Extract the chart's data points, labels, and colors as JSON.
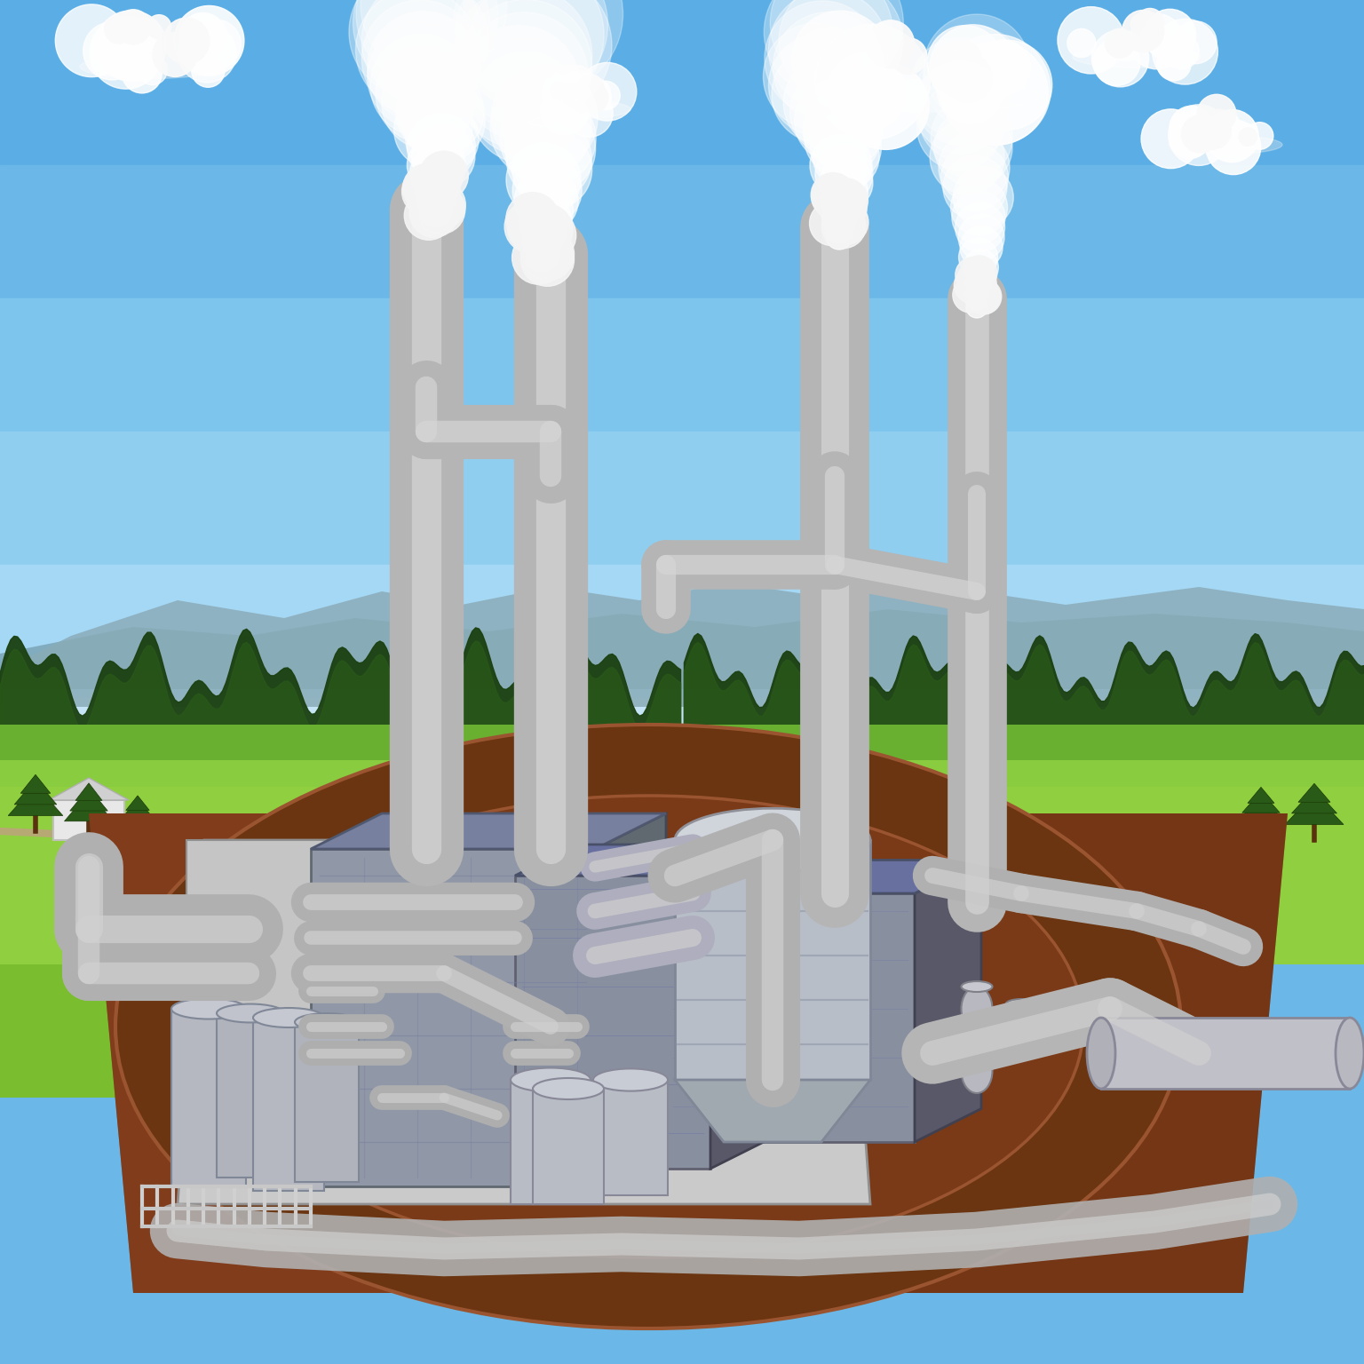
{
  "figsize": [
    15.36,
    15.36
  ],
  "dpi": 100,
  "sky_top": "#6BB8E8",
  "sky_horizon": "#A8D5F0",
  "sky_mid": "#8EC8EF",
  "mountain_color": "#7A9E9A",
  "mountain_dark": "#5A7E7A",
  "forest_color": "#2A5A20",
  "forest_dark": "#1A3A10",
  "forest_mid": "#3A7A28",
  "grass_far": "#7AB840",
  "grass_mid": "#8CC840",
  "grass_near": "#5A9020",
  "soil_main": "#7A3A18",
  "soil_light": "#9A4A20",
  "soil_dark": "#5A2810",
  "road_color": "#6A3510",
  "road_edge": "#8A4A20",
  "concrete_top": "#D0D0D0",
  "concrete_face": "#B8B8B8",
  "concrete_shadow": "#989898",
  "building_main_face": "#A0A8B0",
  "building_main_top": "#888E98",
  "building_main_side": "#787E88",
  "building_dark_face": "#606870",
  "pipe_light": "#C8C8C8",
  "pipe_mid": "#A8A8A8",
  "pipe_dark": "#888888",
  "pipe_shadow": "#686868",
  "tank_light": "#C8CDD0",
  "tank_mid": "#A0A8B0",
  "steam_white": "#FFFFFF",
  "cloud_white": "#F5F5F5",
  "cloud_shadow": "#D0D8E0"
}
